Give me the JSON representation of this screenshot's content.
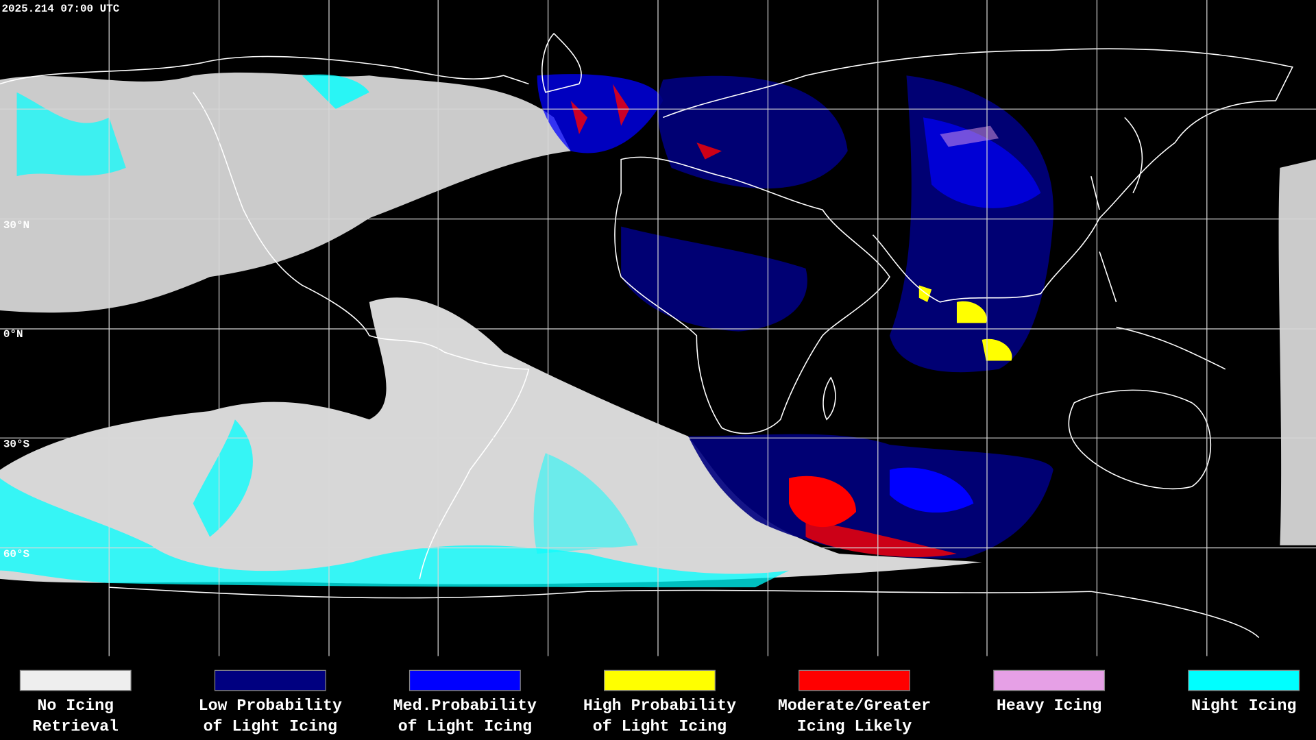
{
  "timestamp": "2025.214 07:00 UTC",
  "latitude_labels": [
    "30°N",
    "0°N",
    "30°S",
    "60°S"
  ],
  "legend": [
    {
      "color": "#eeeeee",
      "lines": [
        "No Icing",
        "Retrieval"
      ]
    },
    {
      "color": "#000080",
      "lines": [
        "Low Probability",
        "of Light Icing"
      ]
    },
    {
      "color": "#0000ff",
      "lines": [
        "Med.Probability",
        "of Light Icing"
      ]
    },
    {
      "color": "#ffff00",
      "lines": [
        "High Probability",
        "of Light Icing"
      ]
    },
    {
      "color": "#ff0000",
      "lines": [
        "Moderate/Greater",
        "Icing Likely"
      ]
    },
    {
      "color": "#e6a0e6",
      "lines": [
        "Heavy Icing"
      ]
    },
    {
      "color": "#00ffff",
      "lines": [
        "Night Icing"
      ]
    }
  ]
}
